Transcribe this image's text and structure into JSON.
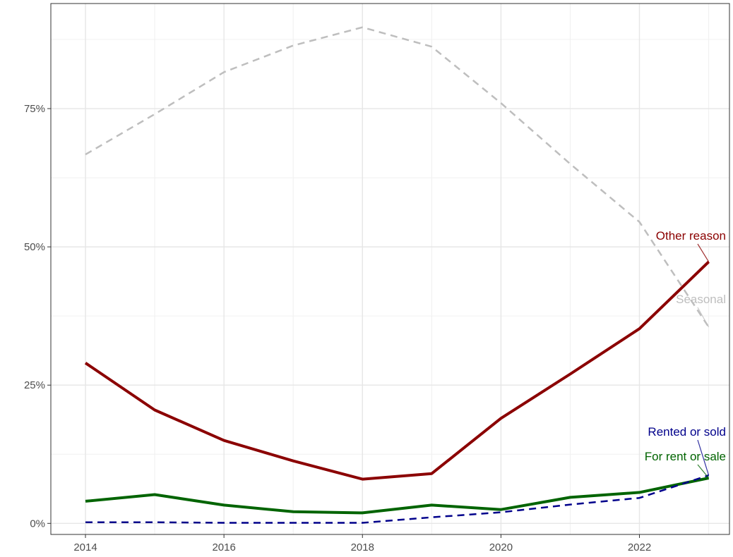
{
  "chart_data": {
    "type": "line",
    "title": "",
    "xlabel": "",
    "ylabel": "",
    "x": [
      2014,
      2015,
      2016,
      2017,
      2018,
      2019,
      2020,
      2021,
      2022,
      2023
    ],
    "xlim": [
      2013.5,
      2023.3
    ],
    "ylim": [
      -0.02,
      0.94
    ],
    "x_ticks": [
      2014,
      2016,
      2018,
      2020,
      2022
    ],
    "x_tick_labels": [
      "2014",
      "2016",
      "2018",
      "2020",
      "2022"
    ],
    "y_ticks": [
      0,
      0.25,
      0.5,
      0.75
    ],
    "y_tick_labels": [
      "0%",
      "25%",
      "50%",
      "75%"
    ],
    "grid": true,
    "legend": "none (direct labels at line ends)",
    "series": [
      {
        "name": "Seasonal",
        "color": "#bebebe",
        "dash": "dashed",
        "values": [
          0.667,
          0.74,
          0.816,
          0.864,
          0.897,
          0.862,
          0.76,
          0.65,
          0.545,
          0.355
        ]
      },
      {
        "name": "Other reason",
        "color": "#8b0000",
        "dash": "solid",
        "values": [
          0.29,
          0.205,
          0.15,
          0.113,
          0.08,
          0.09,
          0.19,
          0.27,
          0.352,
          0.473
        ]
      },
      {
        "name": "For rent or sale",
        "color": "#006400",
        "dash": "solid",
        "values": [
          0.04,
          0.052,
          0.033,
          0.021,
          0.019,
          0.033,
          0.025,
          0.047,
          0.056,
          0.082
        ]
      },
      {
        "name": "Rented or sold",
        "color": "#00008b",
        "dash": "dashed",
        "values": [
          0.002,
          0.002,
          0.001,
          0.001,
          0.001,
          0.011,
          0.02,
          0.034,
          0.046,
          0.087
        ]
      }
    ]
  }
}
